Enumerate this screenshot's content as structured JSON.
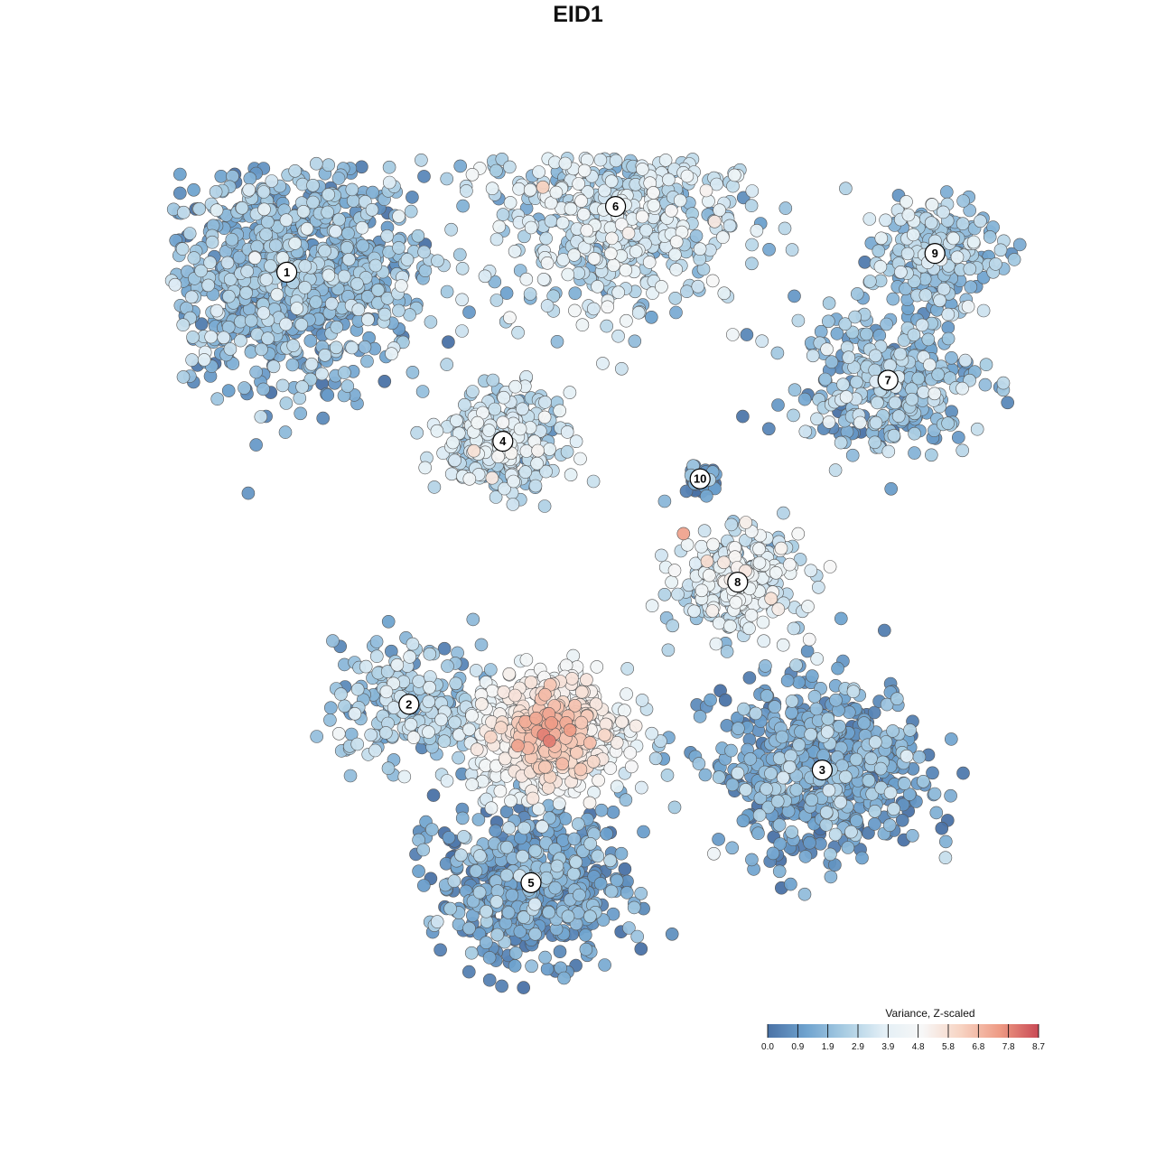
{
  "chart_data": {
    "type": "scatter",
    "title": "EID1",
    "legend": {
      "title": "Variance, Z-scaled",
      "ticks": [
        "0.0",
        "0.9",
        "1.9",
        "2.9",
        "3.9",
        "4.8",
        "5.8",
        "6.8",
        "7.8",
        "8.7"
      ],
      "min": 0.0,
      "max": 8.7,
      "colors": [
        "#4a72a6",
        "#6fa3cf",
        "#a9cde3",
        "#e3eff6",
        "#f7f7f7",
        "#f7d3c2",
        "#ee9a84",
        "#c94a55"
      ],
      "placement": "bottom-right"
    },
    "clusters": [
      {
        "label": "1",
        "x": -6.2,
        "y": 6.8,
        "spread": 2.6,
        "value": 1.7,
        "n": 1000
      },
      {
        "label": "2",
        "x": -3.6,
        "y": -2.4,
        "spread": 1.4,
        "value": 2.2,
        "n": 230
      },
      {
        "label": "3",
        "x": 5.2,
        "y": -3.8,
        "spread": 2.0,
        "value": 1.2,
        "n": 620
      },
      {
        "label": "4",
        "x": -1.6,
        "y": 3.2,
        "spread": 1.1,
        "value": 2.8,
        "n": 360
      },
      {
        "label": "5",
        "x": -1.0,
        "y": -6.2,
        "spread": 1.8,
        "value": 1.0,
        "n": 560
      },
      {
        "label": "6",
        "x": 0.8,
        "y": 8.2,
        "spread": 2.5,
        "value": 3.0,
        "n": 620
      },
      {
        "label": "7",
        "x": 6.6,
        "y": 4.5,
        "spread": 1.8,
        "value": 1.9,
        "n": 320
      },
      {
        "label": "8",
        "x": 3.4,
        "y": 0.2,
        "spread": 1.2,
        "value": 3.4,
        "n": 300
      },
      {
        "label": "9",
        "x": 7.6,
        "y": 7.2,
        "spread": 1.2,
        "value": 2.2,
        "n": 220
      },
      {
        "label": "10",
        "x": 2.6,
        "y": 2.4,
        "spread": 0.35,
        "value": 0.6,
        "n": 50
      },
      {
        "label": "",
        "x": -0.6,
        "y": -3.0,
        "spread": 1.5,
        "value": 5.2,
        "n": 520
      }
    ]
  }
}
